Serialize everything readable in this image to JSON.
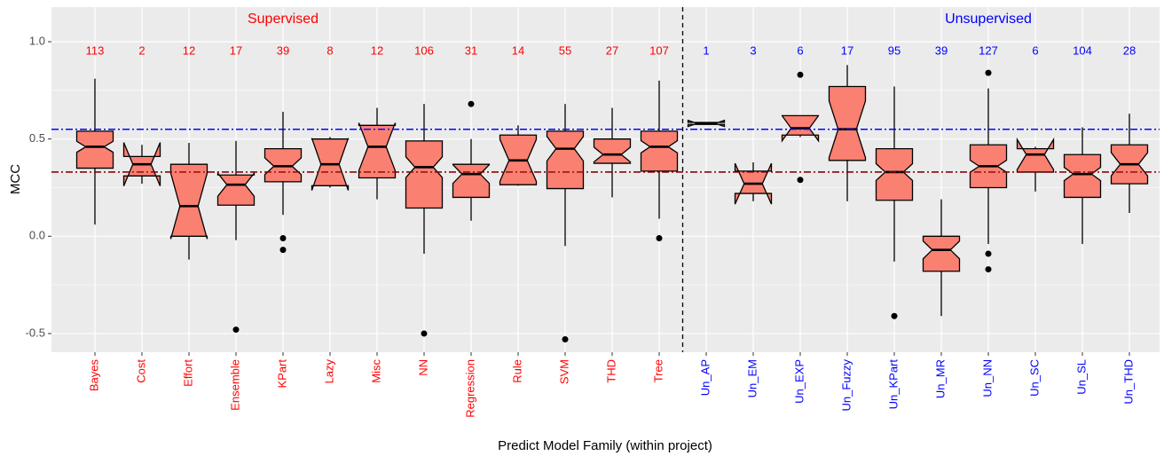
{
  "chart_data": {
    "type": "boxplot",
    "x_label": "Predict Model Family (within project)",
    "y_label": "MCC",
    "ylim": [
      -0.596,
      1.178
    ],
    "yticks": [
      -0.5,
      {
        "value": 0,
        "label": "0.0"
      },
      0.5,
      {
        "value": 1,
        "label": "1.0"
      }
    ],
    "minor_yticks": [
      -0.25,
      0.25,
      0.75
    ],
    "grid": true,
    "box_color": "#fa8072",
    "hlines": [
      {
        "value": 0.55,
        "color": "#0000ff"
      },
      {
        "value": 0.33,
        "color": "#8b0000"
      }
    ],
    "groups": [
      {
        "name": "Supervised",
        "color": "#ff0000",
        "categories": [
          "Bayes",
          "Cost",
          "Effort",
          "Ensemble",
          "KPart",
          "Lazy",
          "Misc",
          "NN",
          "Regression",
          "Rule",
          "SVM",
          "THD",
          "Tree"
        ],
        "n": [
          113,
          2,
          12,
          17,
          39,
          8,
          12,
          106,
          31,
          14,
          55,
          27,
          107
        ],
        "boxes": [
          {
            "low": 0.06,
            "q1": 0.35,
            "median": 0.46,
            "q3": 0.54,
            "high": 0.81,
            "outliers": []
          },
          {
            "low": 0.27,
            "q1": 0.31,
            "median": 0.37,
            "q3": 0.41,
            "high": 0.47,
            "outliers": []
          },
          {
            "low": -0.12,
            "q1": 0.0,
            "median": 0.155,
            "q3": 0.37,
            "high": 0.48,
            "outliers": []
          },
          {
            "low": -0.02,
            "q1": 0.16,
            "median": 0.265,
            "q3": 0.315,
            "high": 0.49,
            "outliers": [
              -0.48
            ]
          },
          {
            "low": 0.11,
            "q1": 0.28,
            "median": 0.36,
            "q3": 0.45,
            "high": 0.64,
            "outliers": [
              -0.01,
              -0.07
            ]
          },
          {
            "low": 0.25,
            "q1": 0.26,
            "median": 0.37,
            "q3": 0.5,
            "high": 0.51,
            "outliers": []
          },
          {
            "low": 0.19,
            "q1": 0.3,
            "median": 0.46,
            "q3": 0.57,
            "high": 0.66,
            "outliers": []
          },
          {
            "low": -0.09,
            "q1": 0.145,
            "median": 0.355,
            "q3": 0.49,
            "high": 0.68,
            "outliers": [
              -0.5
            ]
          },
          {
            "low": 0.08,
            "q1": 0.2,
            "median": 0.32,
            "q3": 0.37,
            "high": 0.5,
            "outliers": [
              0.68
            ]
          },
          {
            "low": 0.26,
            "q1": 0.265,
            "median": 0.39,
            "q3": 0.52,
            "high": 0.57,
            "outliers": []
          },
          {
            "low": -0.05,
            "q1": 0.245,
            "median": 0.45,
            "q3": 0.54,
            "high": 0.68,
            "outliers": [
              -0.53
            ]
          },
          {
            "low": 0.2,
            "q1": 0.375,
            "median": 0.42,
            "q3": 0.5,
            "high": 0.66,
            "outliers": []
          },
          {
            "low": 0.09,
            "q1": 0.335,
            "median": 0.46,
            "q3": 0.54,
            "high": 0.8,
            "outliers": [
              -0.01
            ]
          }
        ]
      },
      {
        "name": "Unsupervised",
        "color": "#0000ff",
        "categories": [
          "Un_AP",
          "Un_EM",
          "Un_EXP",
          "Un_Fuzzy",
          "Un_KPart",
          "Un_MR",
          "Un_NN",
          "Un_SC",
          "Un_SL",
          "Un_THD"
        ],
        "n": [
          1,
          3,
          6,
          17,
          95,
          39,
          127,
          6,
          104,
          28
        ],
        "boxes": [
          {
            "low": 0.575,
            "q1": 0.575,
            "median": 0.58,
            "q3": 0.585,
            "high": 0.585,
            "outliers": []
          },
          {
            "low": 0.18,
            "q1": 0.22,
            "median": 0.27,
            "q3": 0.335,
            "high": 0.38,
            "outliers": []
          },
          {
            "low": 0.51,
            "q1": 0.52,
            "median": 0.555,
            "q3": 0.62,
            "high": 0.62,
            "outliers": [
              0.83,
              0.29
            ]
          },
          {
            "low": 0.18,
            "q1": 0.39,
            "median": 0.55,
            "q3": 0.77,
            "high": 0.88,
            "outliers": []
          },
          {
            "low": -0.13,
            "q1": 0.185,
            "median": 0.33,
            "q3": 0.45,
            "high": 0.77,
            "outliers": [
              -0.41
            ]
          },
          {
            "low": -0.41,
            "q1": -0.18,
            "median": -0.07,
            "q3": 0.0,
            "high": 0.19,
            "outliers": []
          },
          {
            "low": -0.04,
            "q1": 0.25,
            "median": 0.36,
            "q3": 0.47,
            "high": 0.76,
            "outliers": [
              0.84,
              -0.09,
              -0.17
            ]
          },
          {
            "low": 0.23,
            "q1": 0.33,
            "median": 0.42,
            "q3": 0.45,
            "high": 0.46,
            "outliers": []
          },
          {
            "low": -0.04,
            "q1": 0.2,
            "median": 0.32,
            "q3": 0.42,
            "high": 0.56,
            "outliers": []
          },
          {
            "low": 0.12,
            "q1": 0.27,
            "median": 0.37,
            "q3": 0.47,
            "high": 0.63,
            "outliers": []
          }
        ]
      }
    ]
  }
}
